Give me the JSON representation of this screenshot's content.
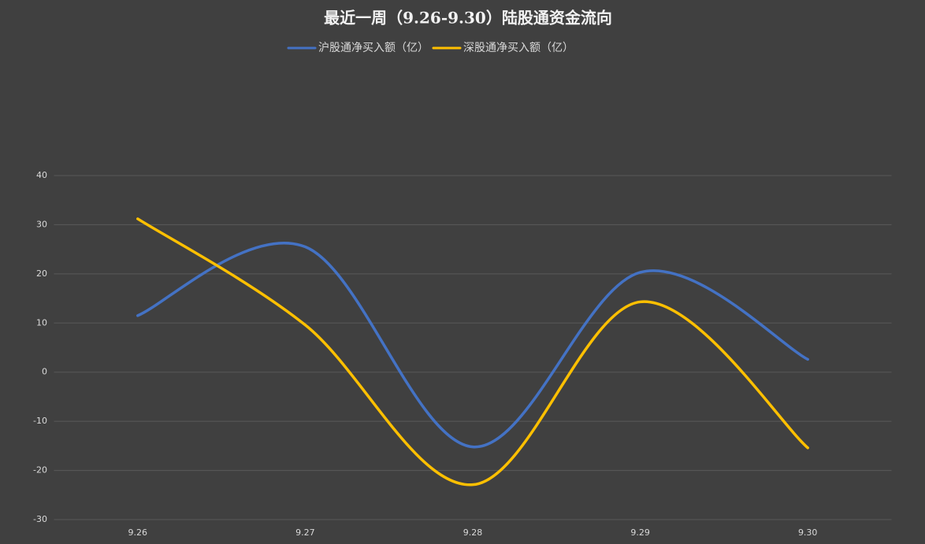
{
  "chart_data": {
    "type": "line",
    "title": "最近一周（9.26-9.30）陆股通资金流向",
    "categories": [
      "9.26",
      "9.27",
      "9.28",
      "9.29",
      "9.30"
    ],
    "series": [
      {
        "name": "沪股通净买入额（亿）",
        "color": "#4472c4",
        "values": [
          11.5,
          25.5,
          -15.2,
          20.3,
          2.6
        ]
      },
      {
        "name": "深股通净买入额（亿）",
        "color": "#ffc000",
        "values": [
          31.2,
          9.6,
          -22.9,
          14.3,
          -15.4
        ]
      }
    ],
    "ylim": [
      -30,
      40
    ],
    "yticks": [
      -30,
      -20,
      -10,
      0,
      10,
      20,
      30,
      40
    ],
    "grid": true,
    "smooth": true,
    "legend": "top"
  }
}
